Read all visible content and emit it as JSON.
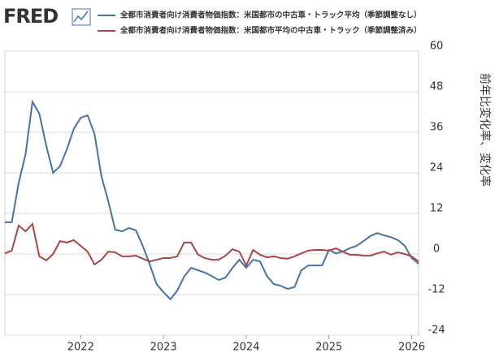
{
  "logo": "FRED",
  "chart_data": {
    "type": "line",
    "y_label": "前年比変化率、変化率",
    "categories": [
      null,
      null,
      null,
      null,
      null,
      null,
      null,
      null,
      null,
      null,
      null,
      "2022",
      null,
      null,
      null,
      null,
      null,
      null,
      null,
      null,
      null,
      null,
      null,
      "2023",
      null,
      null,
      null,
      null,
      null,
      null,
      null,
      null,
      null,
      null,
      null,
      "2024",
      null,
      null,
      null,
      null,
      null,
      null,
      null,
      null,
      null,
      null,
      null,
      "2025",
      null,
      null,
      null,
      null,
      null,
      null,
      null,
      null,
      null,
      null,
      null,
      "2026",
      null
    ],
    "series": [
      {
        "name": "全都市消費者向け消費者物価指数：米国都市の中古車・トラック平均（季節調整なし）",
        "color": "#4572a7",
        "values": [
          9.4,
          9.4,
          21,
          29.5,
          45,
          41.5,
          32,
          24,
          26,
          31,
          37,
          40.3,
          41,
          35.5,
          23,
          15.6,
          7.2,
          6.7,
          7.7,
          7,
          2.4,
          -3,
          -8.9,
          -11.3,
          -13.4,
          -10.8,
          -6.7,
          -4.1,
          -4.8,
          -5.5,
          -6.5,
          -7.7,
          -7,
          -4.1,
          -1.7,
          -4.1,
          -1.7,
          -2.2,
          -6.5,
          -8.9,
          -9.4,
          -10.3,
          -9.8,
          -4.8,
          -3.4,
          -3.4,
          -3.4,
          1.2,
          0.2,
          0.7,
          1.7,
          2.4,
          3.8,
          5.3,
          6.2,
          5.5,
          5,
          4.1,
          2.4,
          -1.2,
          -2.9
        ]
      },
      {
        "name": "全都市消費者向け消費者物価指数：米国都市平均の中古車・トラック（季節調整済み）",
        "color": "#aa4643",
        "values": [
          0.2,
          1,
          8.4,
          6.7,
          8.9,
          -0.7,
          -1.9,
          0,
          3.8,
          3.4,
          4.1,
          2.4,
          0.7,
          -3.1,
          -1.7,
          0.7,
          0.5,
          -0.7,
          -0.7,
          -0.5,
          -1.4,
          -2.2,
          -1.7,
          -1.2,
          -1.2,
          -0.7,
          3.4,
          3.4,
          -0.2,
          -1.2,
          -1.7,
          -1.7,
          -0.5,
          1.4,
          0.7,
          -3.4,
          1.2,
          -0.2,
          -1,
          -0.7,
          -1.2,
          -1.4,
          -0.7,
          0.2,
          1,
          1.2,
          1.2,
          1,
          1.7,
          0.7,
          -0.2,
          -0.2,
          -0.5,
          -0.5,
          0.2,
          0.7,
          -0.2,
          0.5,
          0,
          -0.7,
          -2.2
        ]
      }
    ],
    "ylim": [
      -24,
      60
    ],
    "yticks": [
      -24,
      -12,
      0,
      12,
      24,
      36,
      48,
      60
    ],
    "grid": true
  }
}
